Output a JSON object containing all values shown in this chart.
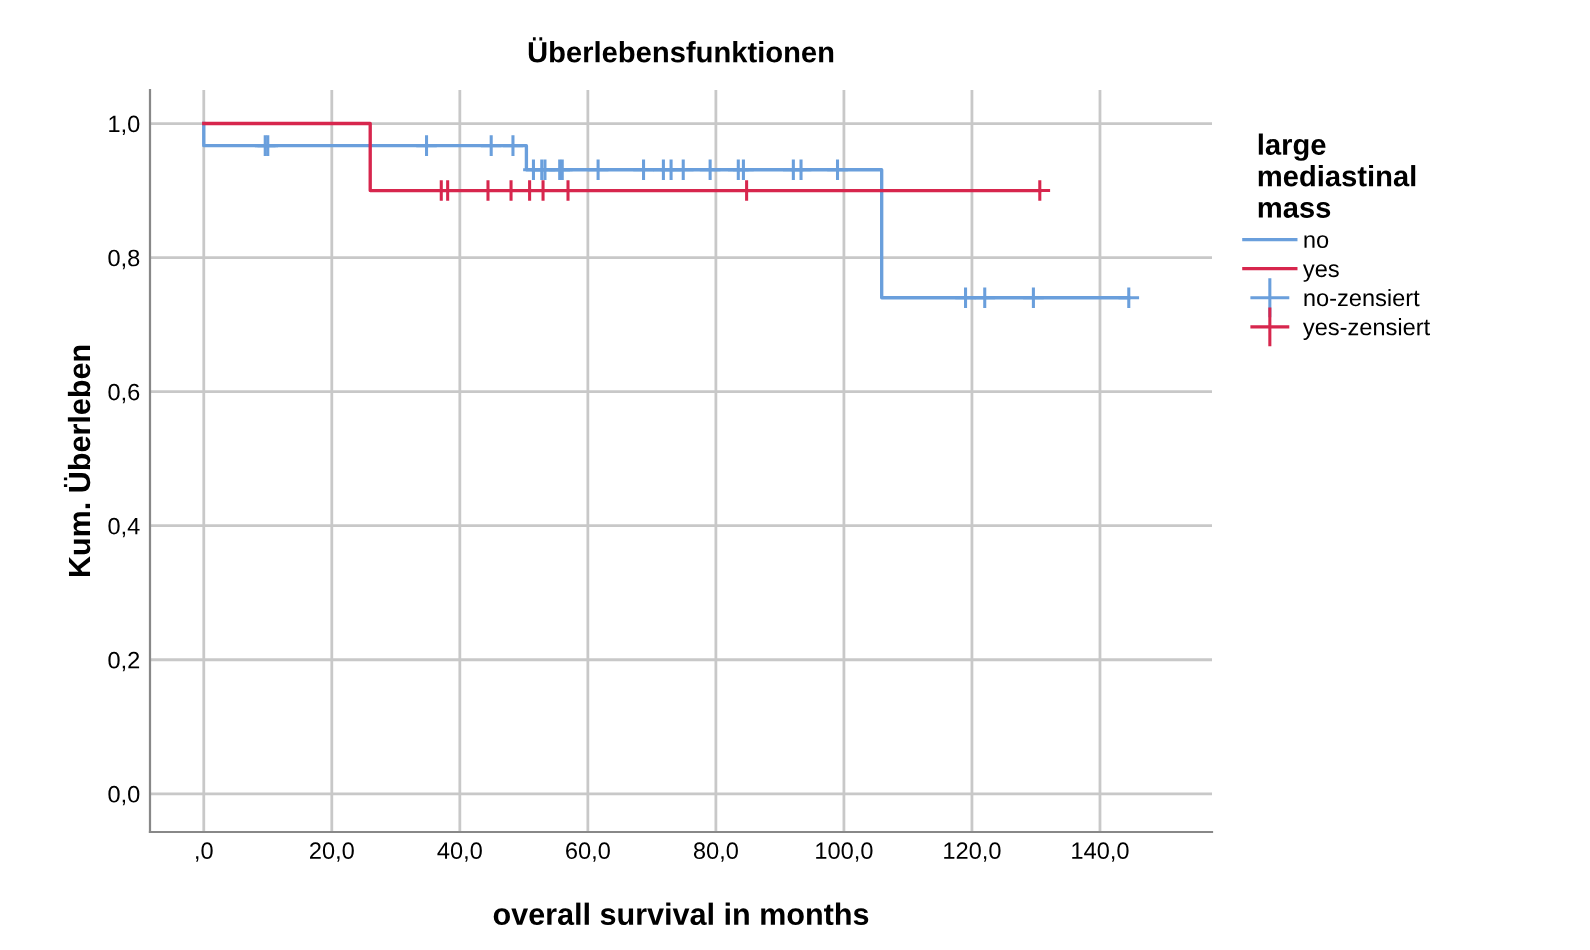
{
  "chart_data": {
    "type": "step",
    "title": "Überlebensfunktionen",
    "xlabel": "overall survival in months",
    "ylabel": "Kum. Überleben",
    "legend_title": "large\nmediastinal\nmass",
    "xlim": [
      -8.4,
      157.5
    ],
    "ylim": [
      -0.057,
      1.05
    ],
    "xticks": [
      {
        "value": 0,
        "label": ",0"
      },
      {
        "value": 20,
        "label": "20,0"
      },
      {
        "value": 40,
        "label": "40,0"
      },
      {
        "value": 60,
        "label": "60,0"
      },
      {
        "value": 80,
        "label": "80,0"
      },
      {
        "value": 100,
        "label": "100,0"
      },
      {
        "value": 120,
        "label": "120,0"
      },
      {
        "value": 140,
        "label": "140,0"
      }
    ],
    "yticks": [
      {
        "value": 0,
        "label": "0,0"
      },
      {
        "value": 0.2,
        "label": "0,2"
      },
      {
        "value": 0.4,
        "label": "0,4"
      },
      {
        "value": 0.6,
        "label": "0,6"
      },
      {
        "value": 0.8,
        "label": "0,8"
      },
      {
        "value": 1.0,
        "label": "1,0"
      }
    ],
    "grid": true,
    "legend": "right",
    "series": [
      {
        "name": "no",
        "color": "#6a9fdc",
        "marker": "none",
        "x": [
          0,
          0,
          50.4,
          105.9,
          144.5
        ],
        "values": [
          1.0,
          0.967,
          0.931,
          0.74,
          0.74
        ]
      },
      {
        "name": "yes",
        "color": "#d7264d",
        "marker": "none",
        "x": [
          0,
          26.0,
          130.6
        ],
        "values": [
          1.0,
          0.9,
          0.9
        ]
      },
      {
        "name": "no-zensiert",
        "type": "scatter",
        "color": "#6a9fdc",
        "marker": "cross",
        "x": [
          9.6,
          10.0,
          34.8,
          44.9,
          48.3,
          51.5,
          52.8,
          53.3,
          55.6,
          56.0,
          61.6,
          68.7,
          71.8,
          73.0,
          74.9,
          79.1,
          83.5,
          84.3,
          92.1,
          93.3,
          99.0,
          119.0,
          122.0,
          129.6,
          144.5
        ],
        "values": [
          0.967,
          0.967,
          0.967,
          0.967,
          0.967,
          0.931,
          0.931,
          0.931,
          0.931,
          0.931,
          0.931,
          0.931,
          0.931,
          0.931,
          0.931,
          0.931,
          0.931,
          0.931,
          0.931,
          0.931,
          0.931,
          0.74,
          0.74,
          0.74,
          0.74
        ]
      },
      {
        "name": "yes-zensiert",
        "type": "scatter",
        "color": "#d7264d",
        "marker": "cross",
        "x": [
          37.1,
          38.1,
          44.4,
          48.0,
          50.9,
          53.0,
          56.9,
          84.8,
          130.6
        ],
        "values": [
          0.9,
          0.9,
          0.9,
          0.9,
          0.9,
          0.9,
          0.9,
          0.9,
          0.9
        ]
      }
    ]
  }
}
